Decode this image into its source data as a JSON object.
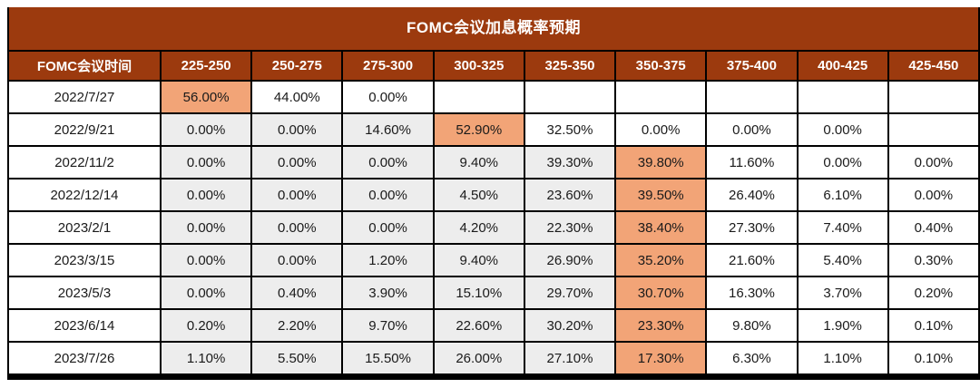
{
  "title": "FOMC会议加息概率预期",
  "chart_data": {
    "type": "table",
    "title": "FOMC会议加息概率预期",
    "columns": [
      "FOMC会议时间",
      "225-250",
      "250-275",
      "275-300",
      "300-325",
      "325-350",
      "350-375",
      "375-400",
      "400-425",
      "425-450"
    ],
    "rows": [
      {
        "date": "2022/7/27",
        "values": [
          "56.00%",
          "44.00%",
          "0.00%",
          "",
          "",
          "",
          "",
          "",
          ""
        ],
        "highlight_index": 0,
        "highlight_col": "225-250"
      },
      {
        "date": "2022/9/21",
        "values": [
          "0.00%",
          "0.00%",
          "14.60%",
          "52.90%",
          "32.50%",
          "0.00%",
          "0.00%",
          "0.00%",
          ""
        ],
        "highlight_index": 3,
        "highlight_col": "300-325"
      },
      {
        "date": "2022/11/2",
        "values": [
          "0.00%",
          "0.00%",
          "0.00%",
          "9.40%",
          "39.30%",
          "39.80%",
          "11.60%",
          "0.00%",
          "0.00%"
        ],
        "highlight_index": 5,
        "highlight_col": "350-375"
      },
      {
        "date": "2022/12/14",
        "values": [
          "0.00%",
          "0.00%",
          "0.00%",
          "4.50%",
          "23.60%",
          "39.50%",
          "26.40%",
          "6.10%",
          "0.00%"
        ],
        "highlight_index": 5,
        "highlight_col": "350-375"
      },
      {
        "date": "2023/2/1",
        "values": [
          "0.00%",
          "0.00%",
          "0.00%",
          "4.20%",
          "22.30%",
          "38.40%",
          "27.30%",
          "7.40%",
          "0.40%"
        ],
        "highlight_index": 5,
        "highlight_col": "350-375"
      },
      {
        "date": "2023/3/15",
        "values": [
          "0.00%",
          "0.00%",
          "1.20%",
          "9.40%",
          "26.90%",
          "35.20%",
          "21.60%",
          "5.40%",
          "0.30%"
        ],
        "highlight_index": 5,
        "highlight_col": "350-375"
      },
      {
        "date": "2023/5/3",
        "values": [
          "0.00%",
          "0.40%",
          "3.90%",
          "15.10%",
          "29.70%",
          "30.70%",
          "16.30%",
          "3.70%",
          "0.20%"
        ],
        "highlight_index": 5,
        "highlight_col": "350-375"
      },
      {
        "date": "2023/6/14",
        "values": [
          "0.20%",
          "2.20%",
          "9.70%",
          "22.60%",
          "30.20%",
          "23.30%",
          "9.80%",
          "1.90%",
          "0.10%"
        ],
        "highlight_index": 5,
        "highlight_col": "350-375"
      },
      {
        "date": "2023/7/26",
        "values": [
          "1.10%",
          "5.50%",
          "15.50%",
          "26.00%",
          "27.10%",
          "17.30%",
          "6.30%",
          "1.10%",
          "0.10%"
        ],
        "highlight_index": 5,
        "highlight_col": "350-375"
      }
    ],
    "layout_hints": {
      "shading_rule": "cells left of highlighted cell are gray, highlighted cell is orange, cells right are white",
      "grid": "black gridlines on all cells, thick black rule under table"
    }
  },
  "colors": {
    "band_brown": "#9C3A0E",
    "highlight_orange": "#F2A477",
    "shaded_gray": "#EDEDED",
    "grid_black": "#000000",
    "bottom_rule": "#000000",
    "text_dark": "#1A1A1A",
    "header_text": "#FFFFFF"
  }
}
